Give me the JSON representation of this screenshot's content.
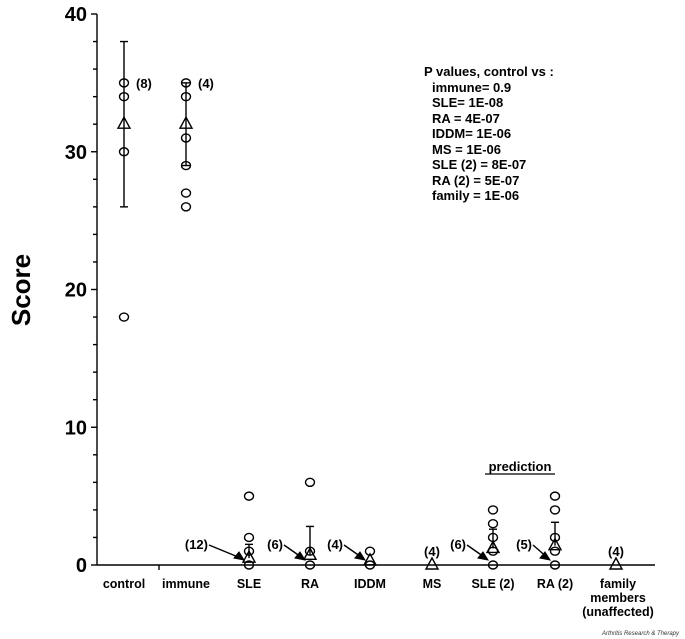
{
  "chart_data": {
    "type": "scatter",
    "ylabel": "Score",
    "ylim": [
      0,
      40
    ],
    "yticks": [
      0,
      10,
      20,
      30,
      40
    ],
    "grid": false,
    "categories": [
      "control",
      "immune",
      "SLE",
      "RA",
      "IDDM",
      "MS",
      "SLE (2)",
      "RA (2)",
      "family members (unaffected)"
    ],
    "category_lines": [
      [
        "control"
      ],
      [
        "immune"
      ],
      [
        "SLE"
      ],
      [
        "RA"
      ],
      [
        "IDDM"
      ],
      [
        "MS"
      ],
      [
        "SLE (2)"
      ],
      [
        "RA (2)"
      ],
      [
        "family",
        "members",
        "(unaffected)"
      ]
    ],
    "groups": [
      {
        "category": "control",
        "points": [
          35,
          34,
          30,
          18
        ],
        "mean": 32,
        "error": [
          26,
          38
        ],
        "n_label": "(8)"
      },
      {
        "category": "immune",
        "points": [
          35,
          34,
          31,
          29,
          27,
          26
        ],
        "mean": 32,
        "error": [
          29,
          35
        ],
        "n_label": "(4)"
      },
      {
        "category": "SLE",
        "points": [
          5,
          2,
          1,
          0
        ],
        "mean": 0.5,
        "error": [
          0.5,
          1.5
        ],
        "n_label": "(12)",
        "arrow": true
      },
      {
        "category": "RA",
        "points": [
          6,
          1,
          0
        ],
        "mean": 0.7,
        "error": [
          0.7,
          2.8
        ],
        "n_label": "(6)",
        "arrow": true
      },
      {
        "category": "IDDM",
        "points": [
          1,
          0
        ],
        "mean": 0.3,
        "error": null,
        "n_label": "(4)",
        "arrow": true
      },
      {
        "category": "MS",
        "points": [],
        "mean": 0,
        "error": null,
        "n_label": "(4)"
      },
      {
        "category": "SLE (2)",
        "points": [
          4,
          3,
          2,
          1,
          0
        ],
        "mean": 1.2,
        "error": [
          1.2,
          2.6
        ],
        "n_label": "(6)",
        "arrow": true
      },
      {
        "category": "RA (2)",
        "points": [
          5,
          4,
          2,
          1,
          0
        ],
        "mean": 1.4,
        "error": [
          1.4,
          3.1
        ],
        "n_label": "(5)",
        "arrow": true
      },
      {
        "category": "family members (unaffected)",
        "points": [],
        "mean": 0,
        "error": null,
        "n_label": "(4)"
      }
    ],
    "annotation_prediction": "prediction",
    "pvalues": {
      "title": "P values, control vs :",
      "lines": [
        "immune= 0.9",
        "SLE= 1E-08",
        "RA = 4E-07",
        "IDDM= 1E-06",
        "MS = 1E-06",
        "SLE (2) = 8E-07",
        "RA (2) = 5E-07",
        "family = 1E-06"
      ]
    }
  },
  "credit": "Arthritis Research & Therapy"
}
